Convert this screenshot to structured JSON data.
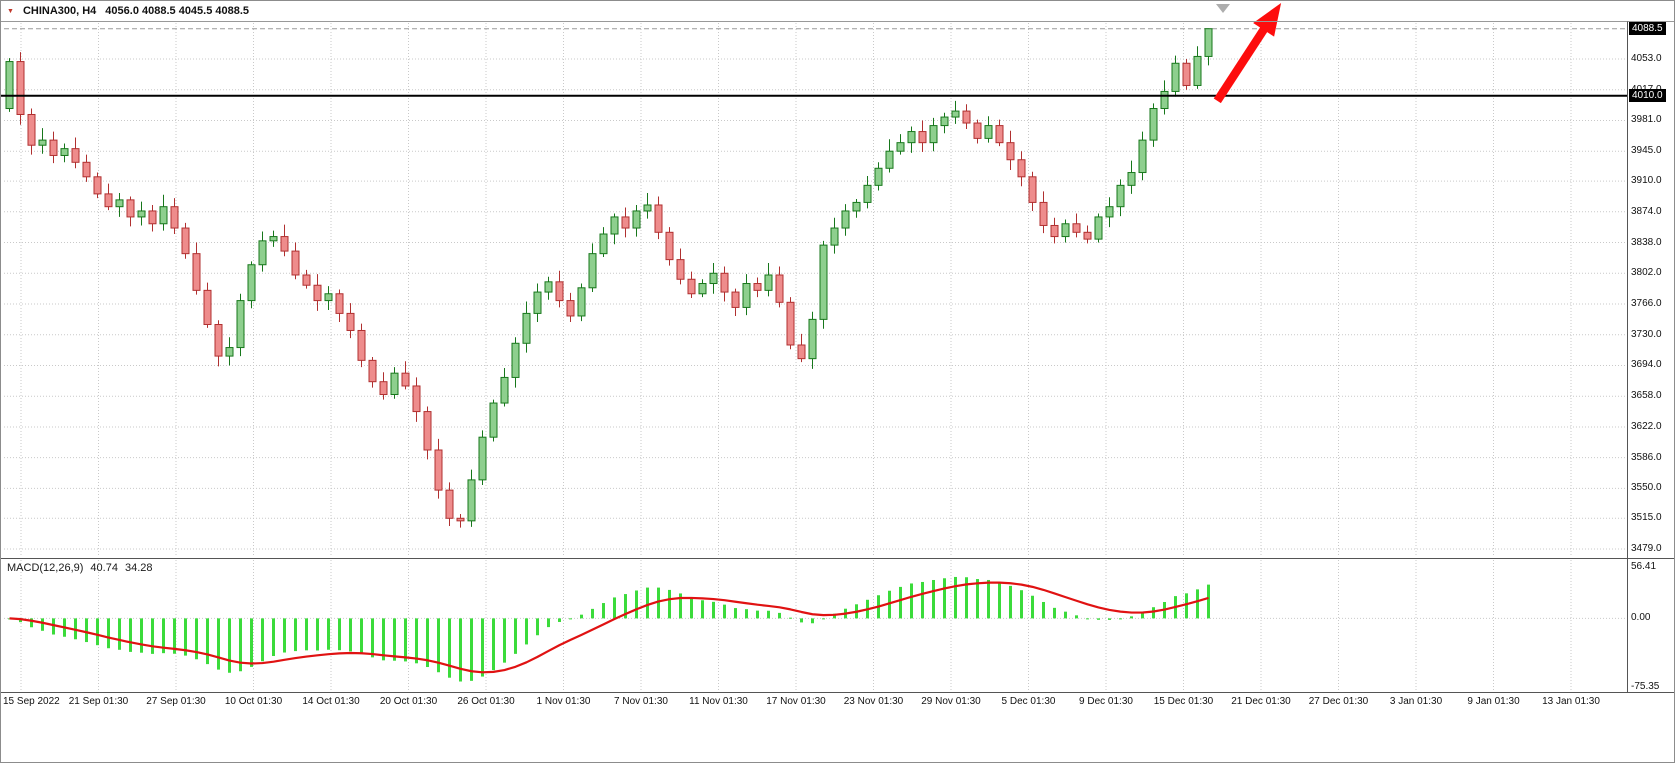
{
  "header": {
    "symbol_period": "CHINA300, H4",
    "ohlc_text": "4056.0 4088.5 4045.5 4088.5"
  },
  "chart_data": {
    "type": "candlestick",
    "symbol": "CHINA300",
    "timeframe": "H4",
    "last_values": {
      "open": 4056.0,
      "high": 4088.5,
      "low": 4045.5,
      "close": 4088.5
    },
    "first_open": 3995,
    "closes": [
      4050,
      3988,
      3952,
      3958,
      3940,
      3948,
      3932,
      3915,
      3895,
      3880,
      3888,
      3868,
      3875,
      3860,
      3880,
      3855,
      3825,
      3782,
      3742,
      3705,
      3715,
      3770,
      3812,
      3840,
      3845,
      3828,
      3800,
      3788,
      3770,
      3778,
      3755,
      3735,
      3700,
      3675,
      3660,
      3685,
      3670,
      3640,
      3595,
      3548,
      3515,
      3512,
      3560,
      3610,
      3650,
      3680,
      3720,
      3755,
      3780,
      3792,
      3770,
      3752,
      3785,
      3825,
      3848,
      3868,
      3855,
      3875,
      3882,
      3850,
      3818,
      3795,
      3778,
      3790,
      3802,
      3780,
      3762,
      3790,
      3782,
      3800,
      3768,
      3718,
      3702,
      3748,
      3835,
      3855,
      3875,
      3885,
      3905,
      3925,
      3945,
      3955,
      3968,
      3955,
      3975,
      3985,
      3992,
      3978,
      3960,
      3975,
      3955,
      3935,
      3915,
      3885,
      3858,
      3845,
      3860,
      3850,
      3842,
      3868,
      3880,
      3905,
      3920,
      3958,
      3995,
      4015,
      4048,
      4022,
      4056,
      4088.5
    ],
    "time_labels": [
      "15 Sep 2022",
      "21 Sep 01:30",
      "27 Sep 01:30",
      "10 Oct 01:30",
      "14 Oct 01:30",
      "20 Oct 01:30",
      "26 Oct 01:30",
      "1 Nov 01:30",
      "7 Nov 01:30",
      "11 Nov 01:30",
      "17 Nov 01:30",
      "23 Nov 01:30",
      "29 Nov 01:30",
      "5 Dec 01:30",
      "9 Dec 01:30",
      "15 Dec 01:30",
      "21 Dec 01:30",
      "27 Dec 01:30",
      "3 Jan 01:30",
      "9 Jan 01:30",
      "13 Jan 01:30"
    ],
    "price_axis": {
      "gridlines": [
        4053.0,
        4017.0,
        3981.0,
        3945.0,
        3910.0,
        3874.0,
        3838.0,
        3802.0,
        3766.0,
        3730.0,
        3694.0,
        3658.0,
        3622.0,
        3586.0,
        3550.0,
        3515.0,
        3479.0
      ],
      "current_price": 4088.5,
      "current_price_label": "4088.5",
      "hline_price": 4010.0,
      "hline_label": "4010.0"
    },
    "macd": {
      "name": "MACD(12,26,9)",
      "macd_value": "40.74",
      "signal_value": "34.28",
      "fast": 12,
      "slow": 26,
      "signal": 9,
      "axis_labels": [
        "56.41",
        "0.00",
        "-75.35"
      ],
      "axis_values": [
        56.41,
        0.0,
        -75.35
      ],
      "range": [
        -75.35,
        56.41
      ]
    },
    "annotations": {
      "horizontal_line_price": 4010.0,
      "up_arrow": {
        "from_bar": 110.3,
        "from_price": 4004,
        "to_bar": 116.1,
        "to_price": 4124
      }
    },
    "colors": {
      "background": "#ffffff",
      "grid": "#c9c9c9",
      "bull_fill": "#8ecf8e",
      "bull_border": "#17771b",
      "bear_fill": "#ee8c8c",
      "bear_border": "#b03030",
      "macd_histogram": "#3bdb3b",
      "macd_signal": "#e01212",
      "trend_arrow": "#fd0d0d",
      "horizontal_line": "#000000",
      "current_price_line": "#9a9a9a",
      "price_badge_bg": "#000000",
      "price_badge_text": "#ffffff",
      "axis_text": "#111111",
      "separator": "#555555"
    }
  }
}
